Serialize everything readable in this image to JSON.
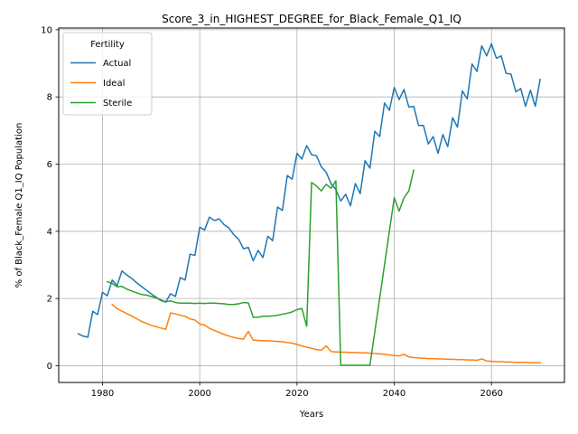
{
  "chart_data": {
    "type": "line",
    "title": "Score_3_in_HIGHEST_DEGREE_for_Black_Female_Q1_IQ",
    "xlabel": "Years",
    "ylabel": "% of Black_Female Q1_IQ Population",
    "xlim": [
      1971,
      2075
    ],
    "ylim": [
      -0.5,
      10.05
    ],
    "xticks": [
      1980,
      2000,
      2020,
      2040,
      2060
    ],
    "yticks": [
      0,
      2,
      4,
      6,
      8,
      10
    ],
    "grid": true,
    "legend": {
      "title": "Fertility",
      "placement": "upper left"
    },
    "series": [
      {
        "name": "Actual",
        "color": "#1f77b4",
        "x": [
          1975,
          1976,
          1977,
          1978,
          1979,
          1980,
          1981,
          1982,
          1983,
          1984,
          1985,
          1986,
          1987,
          1988,
          1989,
          1990,
          1991,
          1992,
          1993,
          1994,
          1995,
          1996,
          1997,
          1998,
          1999,
          2000,
          2001,
          2002,
          2003,
          2004,
          2005,
          2006,
          2007,
          2008,
          2009,
          2010,
          2011,
          2012,
          2013,
          2014,
          2015,
          2016,
          2017,
          2018,
          2019,
          2020,
          2021,
          2022,
          2023,
          2024,
          2025,
          2026,
          2027,
          2028,
          2029,
          2030,
          2031,
          2032,
          2033,
          2034,
          2035,
          2036,
          2037,
          2038,
          2039,
          2040,
          2041,
          2042,
          2043,
          2044,
          2045,
          2046,
          2047,
          2048,
          2049,
          2050,
          2051,
          2052,
          2053,
          2054,
          2055,
          2056,
          2057,
          2058,
          2059,
          2060,
          2061,
          2062,
          2063,
          2064,
          2065,
          2066,
          2067,
          2068,
          2069,
          2070
        ],
        "y": [
          0.95,
          0.88,
          0.85,
          1.62,
          1.52,
          2.18,
          2.08,
          2.55,
          2.38,
          2.82,
          2.7,
          2.6,
          2.47,
          2.36,
          2.25,
          2.14,
          2.04,
          1.94,
          1.89,
          2.14,
          2.06,
          2.62,
          2.55,
          3.32,
          3.28,
          4.12,
          4.04,
          4.42,
          4.32,
          4.37,
          4.2,
          4.1,
          3.9,
          3.76,
          3.48,
          3.52,
          3.12,
          3.43,
          3.22,
          3.85,
          3.72,
          4.72,
          4.62,
          5.66,
          5.55,
          6.32,
          6.15,
          6.55,
          6.28,
          6.25,
          5.92,
          5.76,
          5.42,
          5.24,
          4.9,
          5.1,
          4.76,
          5.42,
          5.12,
          6.1,
          5.88,
          6.98,
          6.82,
          7.82,
          7.6,
          8.28,
          7.92,
          8.22,
          7.7,
          7.72,
          7.15,
          7.15,
          6.6,
          6.82,
          6.32,
          6.88,
          6.52,
          7.38,
          7.1,
          8.18,
          7.94,
          8.98,
          8.76,
          9.52,
          9.22,
          9.58,
          9.15,
          9.22,
          8.7,
          8.68,
          8.15,
          8.25,
          7.72,
          8.2,
          7.72,
          8.52
        ]
      },
      {
        "name": "Ideal",
        "color": "#ff7f0e",
        "x": [
          1982,
          1983,
          1984,
          1985,
          1986,
          1987,
          1988,
          1989,
          1990,
          1991,
          1992,
          1993,
          1994,
          1995,
          1996,
          1997,
          1998,
          1999,
          2000,
          2001,
          2002,
          2003,
          2004,
          2005,
          2006,
          2007,
          2008,
          2009,
          2010,
          2011,
          2012,
          2013,
          2014,
          2015,
          2016,
          2017,
          2018,
          2019,
          2020,
          2021,
          2022,
          2023,
          2024,
          2025,
          2026,
          2027,
          2028,
          2029,
          2030,
          2031,
          2032,
          2033,
          2034,
          2035,
          2036,
          2037,
          2038,
          2039,
          2040,
          2041,
          2042,
          2043,
          2044,
          2045,
          2046,
          2047,
          2048,
          2049,
          2050,
          2051,
          2052,
          2053,
          2054,
          2055,
          2056,
          2057,
          2058,
          2059,
          2060,
          2061,
          2062,
          2063,
          2064,
          2065,
          2066,
          2067,
          2068,
          2069,
          2070
        ],
        "y": [
          1.82,
          1.7,
          1.62,
          1.55,
          1.48,
          1.4,
          1.32,
          1.26,
          1.2,
          1.16,
          1.12,
          1.08,
          1.57,
          1.54,
          1.5,
          1.47,
          1.39,
          1.36,
          1.24,
          1.21,
          1.11,
          1.05,
          0.99,
          0.93,
          0.88,
          0.84,
          0.81,
          0.79,
          1.02,
          0.76,
          0.75,
          0.74,
          0.74,
          0.73,
          0.72,
          0.71,
          0.69,
          0.67,
          0.63,
          0.59,
          0.55,
          0.52,
          0.48,
          0.46,
          0.59,
          0.42,
          0.41,
          0.4,
          0.4,
          0.39,
          0.39,
          0.38,
          0.38,
          0.37,
          0.36,
          0.35,
          0.34,
          0.32,
          0.3,
          0.29,
          0.34,
          0.26,
          0.24,
          0.23,
          0.22,
          0.21,
          0.21,
          0.2,
          0.2,
          0.19,
          0.19,
          0.18,
          0.18,
          0.17,
          0.17,
          0.16,
          0.2,
          0.14,
          0.13,
          0.12,
          0.12,
          0.11,
          0.11,
          0.1,
          0.1,
          0.1,
          0.09,
          0.09,
          0.09
        ]
      },
      {
        "name": "Sterile",
        "color": "#2ca02c",
        "x": [
          1981,
          1982,
          1983,
          1984,
          1985,
          1986,
          1987,
          1988,
          1989,
          1990,
          1991,
          1992,
          1993,
          1994,
          1995,
          1996,
          1997,
          1998,
          1999,
          2000,
          2001,
          2002,
          2003,
          2004,
          2005,
          2006,
          2007,
          2008,
          2009,
          2010,
          2011,
          2012,
          2013,
          2014,
          2015,
          2016,
          2017,
          2018,
          2019,
          2020,
          2021,
          2022,
          2023,
          2024,
          2025,
          2026,
          2027,
          2028,
          2029,
          2030,
          2031,
          2032,
          2033,
          2034,
          2035,
          2040,
          2041,
          2042,
          2043,
          2044
        ],
        "y": [
          2.5,
          2.45,
          2.35,
          2.36,
          2.28,
          2.22,
          2.17,
          2.12,
          2.1,
          2.06,
          2.02,
          1.96,
          1.9,
          1.93,
          1.88,
          1.86,
          1.86,
          1.86,
          1.85,
          1.86,
          1.85,
          1.86,
          1.86,
          1.85,
          1.84,
          1.82,
          1.82,
          1.84,
          1.88,
          1.87,
          1.44,
          1.44,
          1.47,
          1.47,
          1.48,
          1.5,
          1.53,
          1.56,
          1.6,
          1.67,
          1.7,
          1.17,
          5.45,
          5.35,
          5.2,
          5.4,
          5.28,
          5.5,
          0.01,
          0.01,
          0.01,
          0.01,
          0.01,
          0.01,
          0.01,
          5.0,
          4.6,
          5.0,
          5.2,
          5.82
        ]
      }
    ]
  }
}
